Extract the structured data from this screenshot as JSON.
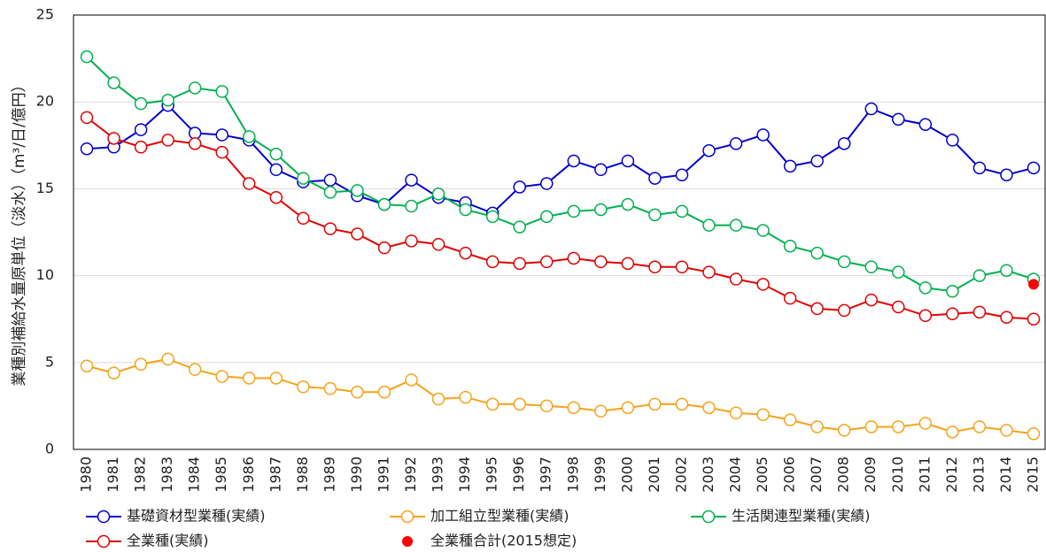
{
  "chart_data": {
    "type": "line",
    "y_label": "業種別補給水量原単位（淡水）（m³/日/億円）",
    "categories": [
      "1980",
      "1981",
      "1982",
      "1983",
      "1984",
      "1985",
      "1986",
      "1987",
      "1988",
      "1989",
      "1990",
      "1991",
      "1992",
      "1993",
      "1994",
      "1995",
      "1996",
      "1997",
      "1998",
      "1999",
      "2000",
      "2001",
      "2002",
      "2003",
      "2004",
      "2005",
      "2006",
      "2007",
      "2008",
      "2009",
      "2010",
      "2011",
      "2012",
      "2013",
      "2014",
      "2015"
    ],
    "ylim": [
      0,
      25
    ],
    "yticks": [
      0,
      5,
      10,
      15,
      20,
      25
    ],
    "grid": true,
    "series": [
      {
        "name": "基礎資材型業種(実績)",
        "color": "#0000cc",
        "values": [
          17.3,
          17.4,
          18.4,
          19.8,
          18.2,
          18.1,
          17.8,
          16.1,
          15.4,
          15.5,
          14.6,
          14.1,
          15.5,
          14.5,
          14.2,
          13.6,
          15.1,
          15.3,
          16.6,
          16.1,
          16.6,
          15.6,
          15.8,
          17.2,
          17.6,
          18.1,
          16.3,
          16.6,
          17.6,
          19.6,
          19.0,
          18.7,
          17.8,
          16.2,
          15.8,
          16.2
        ]
      },
      {
        "name": "加工組立型業種(実績)",
        "color": "#f5a31a",
        "values": [
          4.8,
          4.4,
          4.9,
          5.2,
          4.6,
          4.2,
          4.1,
          4.1,
          3.6,
          3.5,
          3.3,
          3.3,
          4.0,
          2.9,
          3.0,
          2.6,
          2.6,
          2.5,
          2.4,
          2.2,
          2.4,
          2.6,
          2.6,
          2.4,
          2.1,
          2.0,
          1.7,
          1.3,
          1.1,
          1.3,
          1.3,
          1.5,
          1.0,
          1.3,
          1.1,
          0.9
        ]
      },
      {
        "name": "生活関連型業種(実績)",
        "color": "#00b050",
        "values": [
          22.6,
          21.1,
          19.9,
          20.1,
          20.8,
          20.6,
          18.0,
          17.0,
          15.6,
          14.8,
          14.9,
          14.1,
          14.0,
          14.7,
          13.8,
          13.4,
          12.8,
          13.4,
          13.7,
          13.8,
          14.1,
          13.5,
          13.7,
          12.9,
          12.9,
          12.6,
          11.7,
          11.3,
          10.8,
          10.5,
          10.2,
          9.3,
          9.1,
          10.0,
          10.3,
          9.8
        ]
      },
      {
        "name": "全業種(実績)",
        "color": "#e00000",
        "values": [
          19.1,
          17.9,
          17.4,
          17.8,
          17.6,
          17.1,
          15.3,
          14.5,
          13.3,
          12.7,
          12.4,
          11.6,
          12.0,
          11.8,
          11.3,
          10.8,
          10.7,
          10.8,
          11.0,
          10.8,
          10.7,
          10.5,
          10.5,
          10.2,
          9.8,
          9.5,
          8.7,
          8.1,
          8.0,
          8.6,
          8.2,
          7.7,
          7.8,
          7.9,
          7.6,
          7.5
        ]
      },
      {
        "name": "全業種合計(2015想定)",
        "color": "#ff0000",
        "style": "point",
        "values": [
          null,
          null,
          null,
          null,
          null,
          null,
          null,
          null,
          null,
          null,
          null,
          null,
          null,
          null,
          null,
          null,
          null,
          null,
          null,
          null,
          null,
          null,
          null,
          null,
          null,
          null,
          null,
          null,
          null,
          null,
          null,
          null,
          null,
          null,
          null,
          9.5
        ]
      }
    ]
  }
}
